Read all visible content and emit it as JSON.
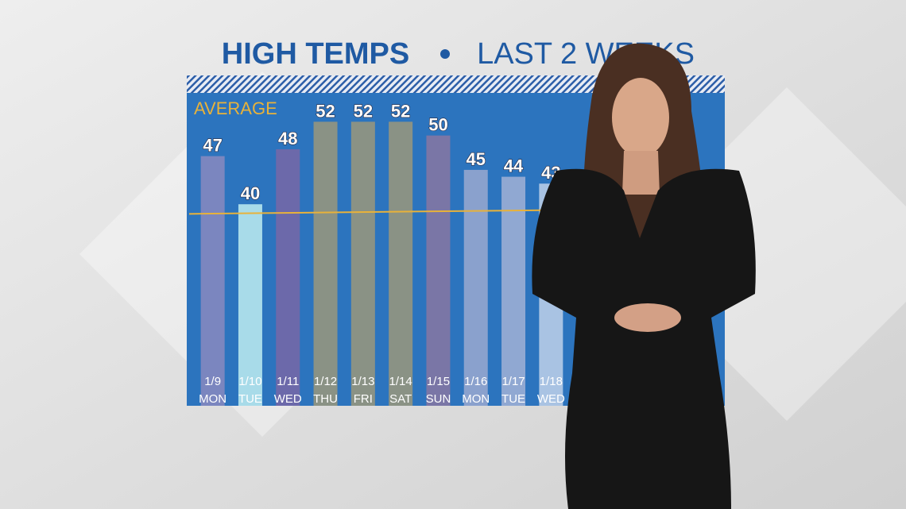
{
  "chart_data": {
    "type": "bar",
    "title": "HIGH TEMPS",
    "subtitle": "LAST 2 WEEKS",
    "categories": [
      "1/9",
      "1/10",
      "1/11",
      "1/12",
      "1/13",
      "1/14",
      "1/15",
      "1/16",
      "1/17",
      "1/18"
    ],
    "weekdays": [
      "MON",
      "TUE",
      "WED",
      "THU",
      "FRI",
      "SAT",
      "SUN",
      "MON",
      "TUE",
      "WED"
    ],
    "values": [
      47,
      40,
      48,
      52,
      52,
      52,
      50,
      45,
      44,
      43
    ],
    "colors": [
      "#7b86bf",
      "#a8dbe9",
      "#6c69aa",
      "#8a9285",
      "#8a9285",
      "#8a9285",
      "#7a76a6",
      "#8aa1cd",
      "#90a8d2",
      "#a9c3e3"
    ],
    "ylim": [
      16,
      54
    ],
    "average": {
      "label": "AVERAGE",
      "start": 38.6,
      "end": 39.4,
      "color": "#e8b23a"
    },
    "background": "#2c74be"
  }
}
